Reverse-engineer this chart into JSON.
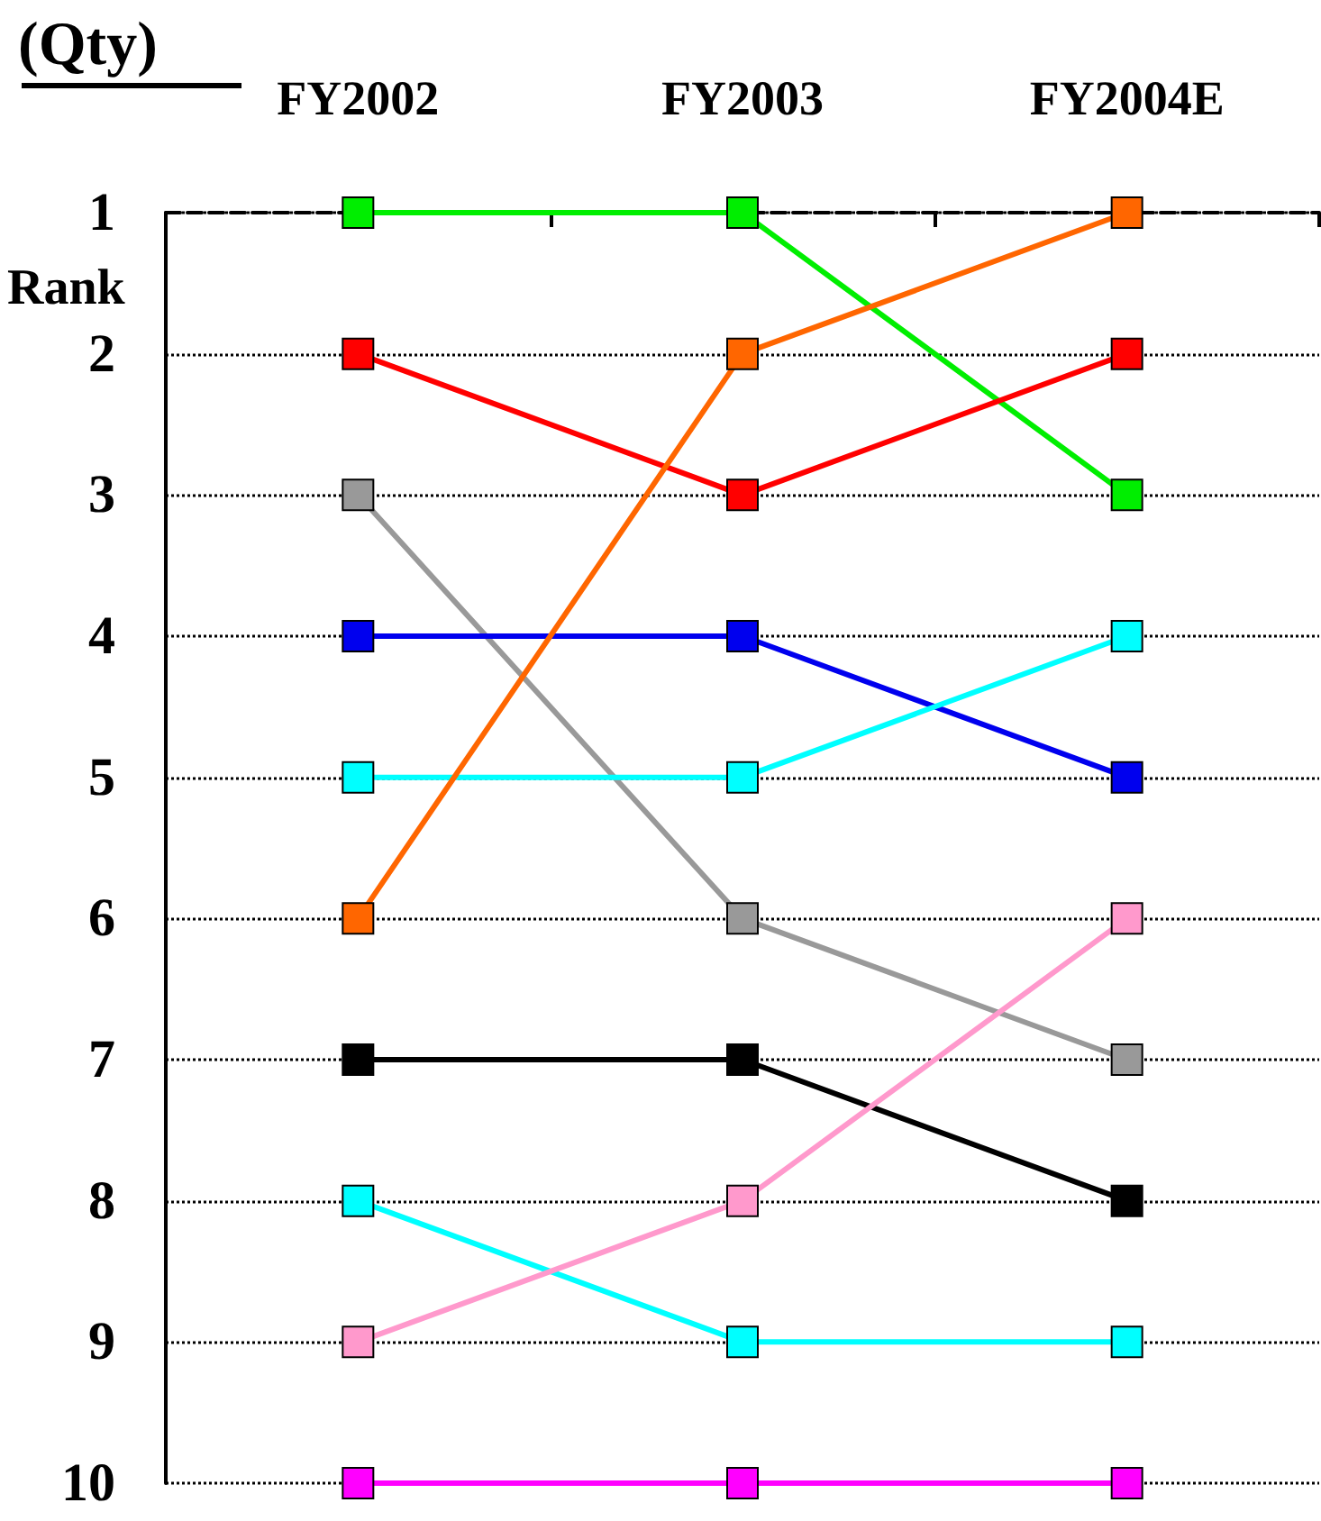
{
  "chart_data": {
    "type": "line",
    "title": "(Qty)",
    "ylabel": "Rank",
    "categories": [
      "FY2002",
      "FY2003",
      "FY2004E"
    ],
    "series": [
      {
        "color": "#00ee00",
        "values": [
          1,
          1,
          3
        ]
      },
      {
        "color": "#ff0000",
        "values": [
          2,
          3,
          2
        ]
      },
      {
        "color": "#999999",
        "values": [
          3,
          6,
          7
        ]
      },
      {
        "color": "#0000ee",
        "values": [
          4,
          4,
          5
        ]
      },
      {
        "color": "#00ffff",
        "values": [
          5,
          5,
          4
        ]
      },
      {
        "color": "#ff6600",
        "values": [
          6,
          2,
          1
        ]
      },
      {
        "color": "#000000",
        "values": [
          7,
          7,
          8
        ]
      },
      {
        "color": "#00ffff",
        "values": [
          8,
          9,
          9
        ]
      },
      {
        "color": "#ff99cc",
        "values": [
          9,
          8,
          6
        ]
      },
      {
        "color": "#ff00ff",
        "values": [
          10,
          10,
          10
        ]
      }
    ],
    "ylim": [
      10,
      1
    ],
    "yticks": [
      1,
      2,
      3,
      4,
      5,
      6,
      7,
      8,
      9,
      10
    ],
    "grid": "y",
    "marker": "square",
    "line_style": "solid"
  }
}
